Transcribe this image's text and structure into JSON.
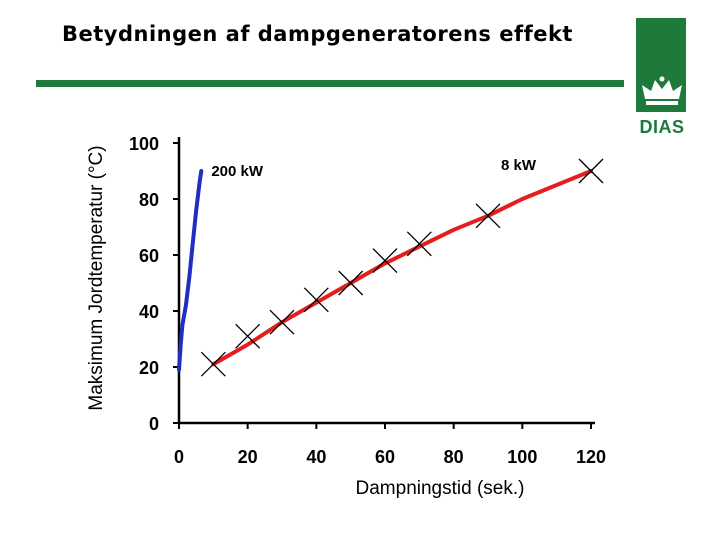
{
  "title": "Betydningen af dampgeneratorens effekt",
  "logo": {
    "text": "DIAS",
    "icon": "crown-icon",
    "color": "#1e7a3a"
  },
  "chart_data": {
    "type": "line",
    "title": "Betydningen af dampgeneratorens effekt",
    "xlabel": "Dampningstid (sek.)",
    "ylabel": "Maksimum Jordtemperatur (°C)",
    "xlim": [
      0,
      120
    ],
    "ylim": [
      0,
      100
    ],
    "xticks": [
      "0",
      "20",
      "40",
      "60",
      "80",
      "100",
      "120"
    ],
    "yticks": [
      "0",
      "20",
      "40",
      "60",
      "80",
      "100"
    ],
    "grid": false,
    "series": [
      {
        "name": "200 kW",
        "color": "#1f2fc0",
        "style": "line",
        "x": [
          0,
          0.5,
          1,
          2,
          3,
          4,
          5,
          6,
          6.5
        ],
        "y": [
          19,
          28,
          35,
          42,
          52,
          64,
          76,
          86,
          90
        ]
      },
      {
        "name": "8 kW",
        "color": "#e41e1e",
        "style": "line",
        "x": [
          10,
          20,
          30,
          40,
          50,
          60,
          70,
          80,
          90,
          100,
          110,
          120
        ],
        "y": [
          21,
          28,
          36,
          43,
          50,
          57,
          63,
          69,
          74,
          80,
          85,
          90
        ]
      },
      {
        "name": "",
        "style": "markers",
        "marker": "x",
        "color": "#000000",
        "x": [
          10,
          20,
          30,
          40,
          50,
          60,
          70,
          90,
          120
        ],
        "y": [
          21,
          31,
          36,
          44,
          50,
          58,
          64,
          74,
          90
        ]
      }
    ]
  }
}
